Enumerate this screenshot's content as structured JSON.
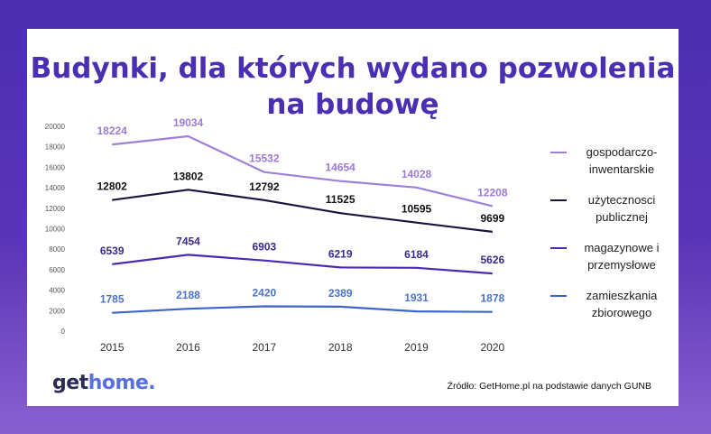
{
  "logo": {
    "part1": "get",
    "part2": "home."
  },
  "source": "Źródło: GetHome.pl na podstawie danych GUNB",
  "colors": {
    "background": "#4a2fb0",
    "title": "#4b2fb3"
  },
  "chart_data": {
    "type": "line",
    "title": [
      "Budynki, dla których wydano pozwolenia",
      "na budowę"
    ],
    "categories": [
      "2015",
      "2016",
      "2017",
      "2018",
      "2019",
      "2020"
    ],
    "ylim": [
      0,
      20000
    ],
    "yticks": [
      0,
      2000,
      4000,
      6000,
      8000,
      10000,
      12000,
      14000,
      16000,
      18000,
      20000
    ],
    "grid": false,
    "legend_position": "right",
    "series": [
      {
        "name": "gospodarczo-inwentarskie",
        "legend_lines": [
          "gospodarczo-",
          "inwentarskie"
        ],
        "color": "#a07fd8",
        "label_color": "#9c7ad6",
        "values": [
          18224,
          19034,
          15532,
          14654,
          14028,
          12208
        ]
      },
      {
        "name": "użyteczności publicznej",
        "legend_lines": [
          "użytecznosci",
          "publicznej"
        ],
        "color": "#1a1440",
        "label_color": "#111111",
        "values": [
          12802,
          13802,
          12792,
          11525,
          10595,
          9699
        ]
      },
      {
        "name": "magazynowe i przemysłowe",
        "legend_lines": [
          "magazynowe i",
          "przemysłowe"
        ],
        "color": "#4a2bb0",
        "label_color": "#3b2a8a",
        "values": [
          6539,
          7454,
          6903,
          6219,
          6184,
          5626
        ]
      },
      {
        "name": "zamieszkania zbiorowego",
        "legend_lines": [
          "zamieszkania",
          "zbiorowego"
        ],
        "color": "#3d64c8",
        "label_color": "#4a72cc",
        "values": [
          1785,
          2188,
          2420,
          2389,
          1931,
          1878
        ]
      }
    ]
  }
}
